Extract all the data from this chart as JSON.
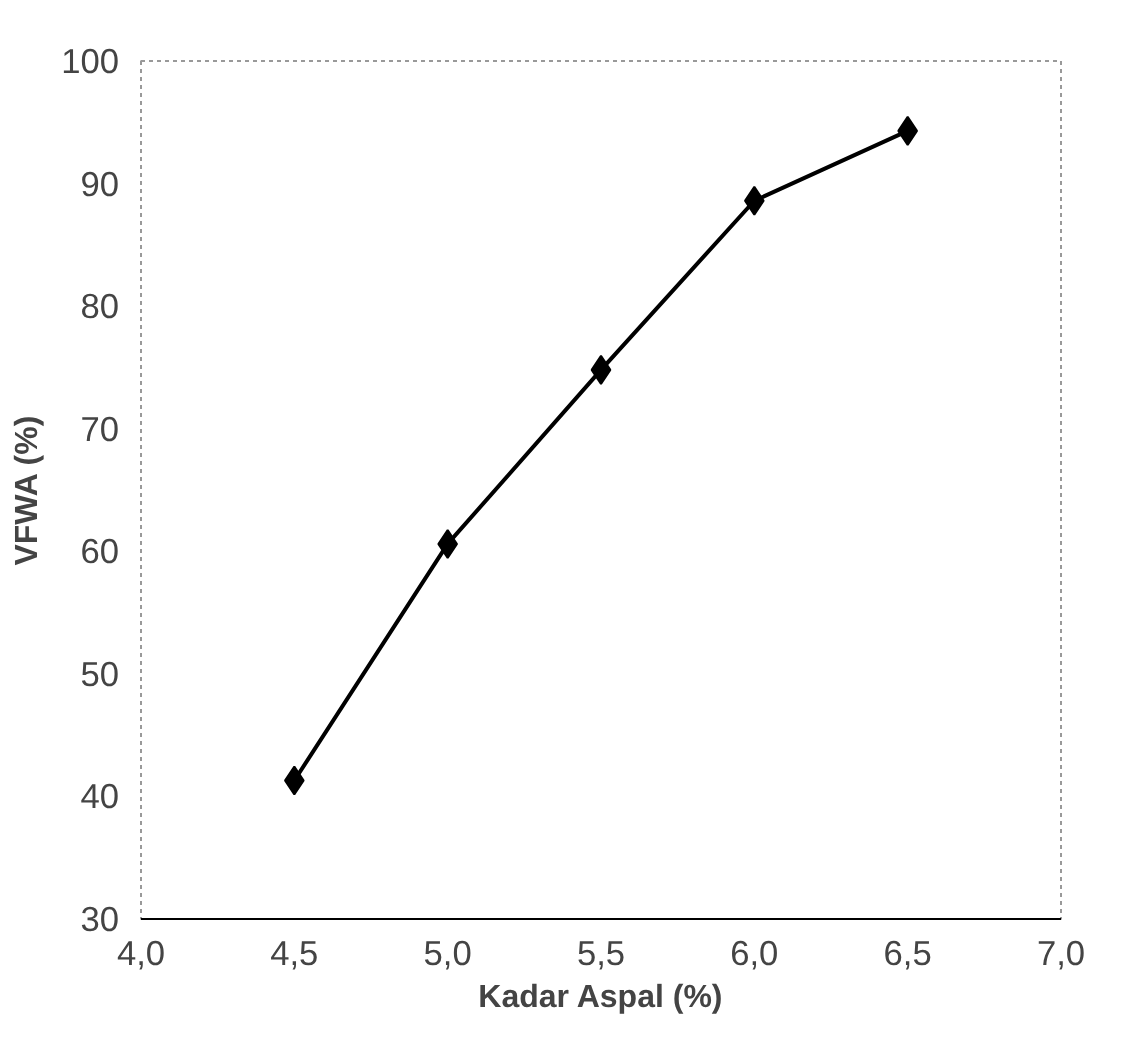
{
  "chart_data": {
    "type": "line",
    "xlabel": "Kadar Aspal (%)",
    "ylabel": "VFWA (%)",
    "x": [
      4.5,
      5.0,
      5.5,
      6.0,
      6.5
    ],
    "series": [
      {
        "color": "#000000",
        "values": [
          41.3,
          60.6,
          74.8,
          88.6,
          94.3
        ]
      }
    ],
    "xlim": [
      4.0,
      7.0
    ],
    "xticks": [
      {
        "value": 4.0,
        "label": "4,0"
      },
      {
        "value": 4.5,
        "label": "4,5"
      },
      {
        "value": 5.0,
        "label": "5,0"
      },
      {
        "value": 5.5,
        "label": "5,5"
      },
      {
        "value": 6.0,
        "label": "6,0"
      },
      {
        "value": 6.5,
        "label": "6,5"
      },
      {
        "value": 7.0,
        "label": "7,0"
      }
    ],
    "ylim": [
      30,
      100
    ],
    "yticks": [
      30,
      40,
      50,
      60,
      70,
      80,
      90,
      100
    ],
    "marker": "diamond",
    "line_style": "solid"
  }
}
